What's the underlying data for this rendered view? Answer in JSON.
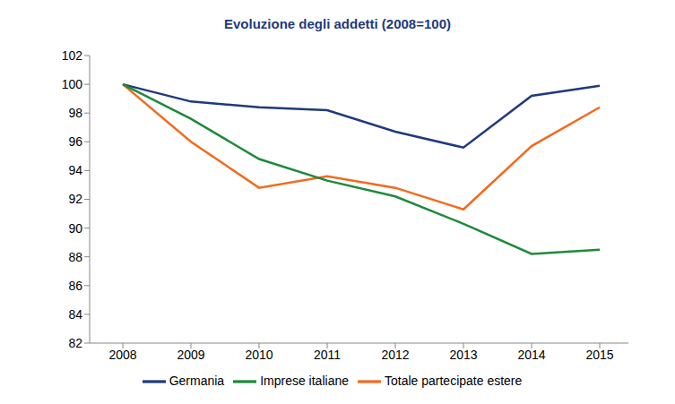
{
  "chart_data": {
    "type": "line",
    "title": "Evoluzione degli addetti (2008=100)",
    "categories": [
      "2008",
      "2009",
      "2010",
      "2011",
      "2012",
      "2013",
      "2014",
      "2015"
    ],
    "series": [
      {
        "name": "Germania",
        "color": "#1f3a7d",
        "values": [
          100,
          98.8,
          98.4,
          98.2,
          96.7,
          95.6,
          99.2,
          99.9
        ]
      },
      {
        "name": "Totale partecipate estere",
        "color": "#f26b1d",
        "values": [
          100,
          96.0,
          92.8,
          93.6,
          92.8,
          91.3,
          95.7,
          98.4
        ]
      },
      {
        "name": "Imprese italiane",
        "color": "#1e8a3a",
        "values": [
          100,
          97.6,
          94.8,
          93.3,
          92.2,
          90.3,
          88.2,
          88.5
        ]
      }
    ],
    "ylim": [
      82,
      102
    ],
    "yticks": [
      82,
      84,
      86,
      88,
      90,
      92,
      94,
      96,
      98,
      100,
      102
    ],
    "grid": false,
    "legend": "bottom"
  }
}
